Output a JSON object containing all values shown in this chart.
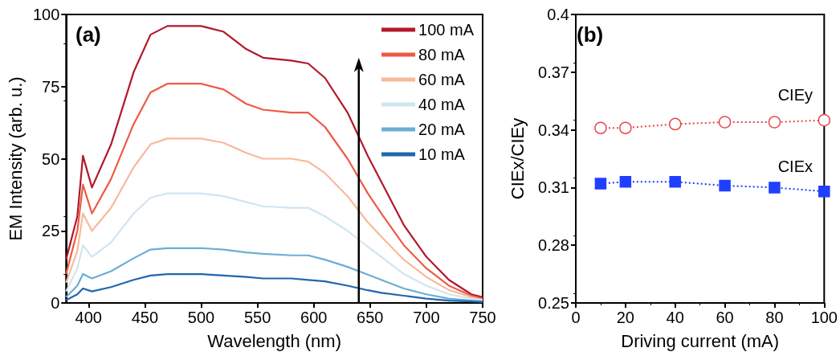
{
  "chart_data": [
    {
      "type": "line",
      "xlabel": "Wavelength (nm)",
      "ylabel": "EM Intensity (arb. u.)",
      "annotations": [
        "(a)"
      ],
      "xlim": [
        380,
        750
      ],
      "xticks": [
        400,
        450,
        500,
        550,
        600,
        650,
        700,
        750
      ],
      "ylim": [
        0,
        100
      ],
      "yticks": [
        0,
        25,
        50,
        75,
        100
      ],
      "grid": false,
      "legend": "top right",
      "marker": "none",
      "line_style": "solid",
      "x": [
        380,
        390,
        395,
        403,
        420,
        440,
        455,
        470,
        500,
        520,
        540,
        555,
        580,
        595,
        610,
        630,
        648,
        660,
        680,
        700,
        720,
        740,
        750
      ],
      "series": [
        {
          "name": "100 mA",
          "color": "#b2182b",
          "values": [
            15,
            30,
            51,
            40,
            55,
            80,
            93,
            96,
            96,
            94,
            88,
            85,
            84,
            83,
            78,
            66,
            51,
            42,
            27,
            16,
            8,
            3,
            2
          ]
        },
        {
          "name": "80 mA",
          "color": "#ef5a45",
          "values": [
            10,
            25,
            41,
            31,
            43,
            62,
            73,
            76,
            76,
            74,
            69,
            67,
            66,
            66,
            61,
            50,
            38,
            31,
            20,
            12,
            6,
            2.5,
            1.5
          ]
        },
        {
          "name": "60 mA",
          "color": "#f9b99a",
          "values": [
            7,
            18,
            31,
            25,
            33,
            47,
            55,
            57,
            57,
            55.5,
            52,
            50,
            50,
            49,
            45,
            37,
            28,
            23,
            15,
            9,
            4.5,
            2,
            1
          ]
        },
        {
          "name": "40 mA",
          "color": "#d1e5f0",
          "values": [
            4,
            12,
            20,
            16,
            21,
            31,
            36.5,
            38,
            38,
            37,
            35,
            33.5,
            33,
            33,
            30,
            25,
            19.5,
            16,
            10,
            6,
            3,
            1.5,
            1
          ]
        },
        {
          "name": "20 mA",
          "color": "#6baed6",
          "values": [
            2,
            6,
            10,
            8.5,
            11,
            15.5,
            18.5,
            19,
            19,
            18.5,
            17.5,
            17,
            16.5,
            16.5,
            15,
            12.5,
            9.8,
            8,
            5,
            3,
            1.5,
            0.8,
            0.5
          ]
        },
        {
          "name": "10 mA",
          "color": "#2166ac",
          "values": [
            1,
            3,
            5,
            4,
            5.5,
            8,
            9.5,
            10,
            10,
            9.5,
            9,
            8.5,
            8.5,
            8,
            7.5,
            6,
            4.4,
            3.5,
            2.5,
            1.5,
            0.8,
            0.5,
            0.3
          ]
        }
      ]
    },
    {
      "type": "line",
      "xlabel": "Driving current (mA)",
      "ylabel": "CIEx/CIEy",
      "annotations": [
        "(b)"
      ],
      "xlim": [
        0,
        100
      ],
      "xticks": [
        0,
        20,
        40,
        60,
        80,
        100
      ],
      "ylim": [
        0.25,
        0.4
      ],
      "yticks": [
        0.25,
        0.28,
        0.31,
        0.34,
        0.37,
        0.4
      ],
      "grid": false,
      "legend": false,
      "line_style": "dotted",
      "x": [
        10,
        20,
        40,
        60,
        80,
        100
      ],
      "series": [
        {
          "name": "CIEy",
          "color": "#e8454a",
          "marker": "circle",
          "values": [
            0.341,
            0.341,
            0.343,
            0.344,
            0.344,
            0.345
          ]
        },
        {
          "name": "CIEx",
          "color": "#1f3fff",
          "marker": "square",
          "values": [
            0.312,
            0.313,
            0.313,
            0.311,
            0.31,
            0.308
          ]
        }
      ]
    }
  ]
}
